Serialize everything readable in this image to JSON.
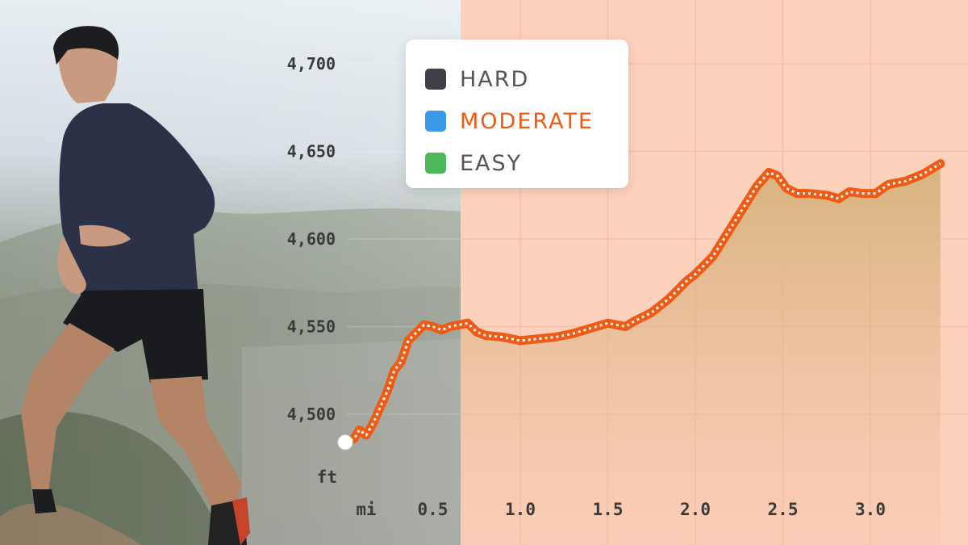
{
  "chart_data": {
    "type": "area",
    "title": "",
    "xlabel": "",
    "ylabel": "",
    "x_unit": "mi",
    "y_unit": "ft",
    "xlim": [
      0.0,
      3.4
    ],
    "ylim": [
      4480,
      4705
    ],
    "x_ticks": [
      "0.5",
      "1.0",
      "1.5",
      "2.0",
      "2.5",
      "3.0"
    ],
    "y_ticks": [
      "4,700",
      "4,650",
      "4,600",
      "4,550",
      "4,500"
    ],
    "grid": true,
    "legend_position": "top-center",
    "legend": [
      {
        "label": "HARD",
        "color": "#3f3f46",
        "active": false
      },
      {
        "label": "MODERATE",
        "color": "#3b9ae8",
        "active": true
      },
      {
        "label": "EASY",
        "color": "#4cb85a",
        "active": false
      }
    ],
    "series": [
      {
        "line_color": "#ef5a14",
        "x": [
          0.0,
          0.05,
          0.08,
          0.12,
          0.16,
          0.2,
          0.24,
          0.28,
          0.32,
          0.36,
          0.4,
          0.45,
          0.5,
          0.55,
          0.6,
          0.65,
          0.7,
          0.75,
          0.8,
          0.9,
          1.0,
          1.1,
          1.2,
          1.3,
          1.4,
          1.5,
          1.6,
          1.65,
          1.75,
          1.85,
          1.95,
          2.0,
          2.1,
          2.2,
          2.3,
          2.35,
          2.42,
          2.47,
          2.52,
          2.58,
          2.65,
          2.75,
          2.82,
          2.88,
          2.95,
          3.03,
          3.1,
          3.2,
          3.3,
          3.4
        ],
        "y": [
          4484,
          4486,
          4491,
          4488,
          4495,
          4504,
          4513,
          4525,
          4530,
          4542,
          4546,
          4551,
          4550,
          4548,
          4550,
          4551,
          4552,
          4547,
          4545,
          4544,
          4542,
          4543,
          4544,
          4546,
          4549,
          4552,
          4550,
          4553,
          4558,
          4566,
          4576,
          4580,
          4590,
          4606,
          4622,
          4630,
          4638,
          4636,
          4629,
          4626,
          4626,
          4625,
          4623,
          4627,
          4626,
          4626,
          4631,
          4633,
          4637,
          4643
        ]
      }
    ]
  }
}
